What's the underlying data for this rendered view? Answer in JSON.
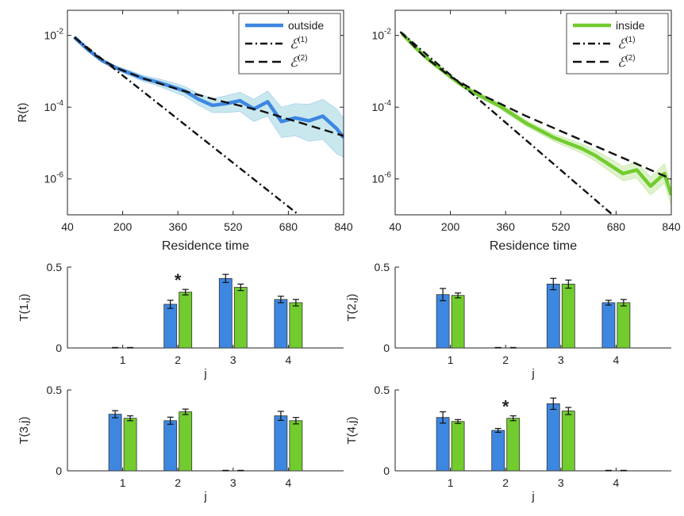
{
  "colors": {
    "outside": "#3d87e0",
    "outside_band": "#c9e8ee",
    "inside": "#72cc2e",
    "inside_band": "#dff2cd",
    "fit": "#111111"
  },
  "chart_data": [
    {
      "type": "line",
      "id": "top-left",
      "title": "",
      "xlabel": "Residence time",
      "ylabel": "R(t)",
      "yscale": "log",
      "xlim": [
        40,
        840
      ],
      "ylim_exp": [
        -7,
        -1.3
      ],
      "xticks": [
        40,
        200,
        360,
        520,
        680,
        840
      ],
      "xtick_labels": [
        "40",
        "200",
        "360",
        "520",
        "680",
        "840"
      ],
      "yticks_exp": [
        -2,
        -4,
        -6
      ],
      "ytick_labels": [
        {
          "base": "10",
          "exp": "-2"
        },
        {
          "base": "10",
          "exp": "-4"
        },
        {
          "base": "10",
          "exp": "-6"
        }
      ],
      "legend_position": "top-right",
      "series": [
        {
          "name": "outside",
          "style": "band-line",
          "x": [
            60,
            100,
            140,
            180,
            220,
            260,
            300,
            340,
            380,
            420,
            460,
            500,
            540,
            580,
            620,
            660,
            700,
            740,
            780,
            820,
            840
          ],
          "y_exp": [
            -2.05,
            -2.4,
            -2.7,
            -2.9,
            -3.05,
            -3.2,
            -3.3,
            -3.42,
            -3.55,
            -3.78,
            -3.95,
            -3.9,
            -3.82,
            -4.05,
            -3.85,
            -4.4,
            -4.3,
            -4.38,
            -4.25,
            -4.6,
            -4.85
          ],
          "band_low_exp": [
            -2.05,
            -2.42,
            -2.74,
            -2.95,
            -3.12,
            -3.28,
            -3.4,
            -3.55,
            -3.7,
            -3.95,
            -4.15,
            -4.15,
            -4.12,
            -4.4,
            -4.25,
            -4.85,
            -4.8,
            -4.95,
            -4.9,
            -5.3,
            -5.4
          ],
          "band_high_exp": [
            -2.05,
            -2.38,
            -2.66,
            -2.85,
            -2.98,
            -3.12,
            -3.2,
            -3.3,
            -3.42,
            -3.62,
            -3.76,
            -3.68,
            -3.58,
            -3.78,
            -3.55,
            -4.0,
            -3.9,
            -3.92,
            -3.78,
            -4.05,
            -4.3
          ]
        },
        {
          "name": "ℰ(1)",
          "label_base": "ℰ",
          "label_sup": "(1)",
          "style": "dashdot",
          "x": [
            60,
            710
          ],
          "y_exp": [
            -2.05,
            -7.0
          ]
        },
        {
          "name": "ℰ(2)",
          "label_base": "ℰ",
          "label_sup": "(2)",
          "style": "dashed",
          "x": [
            60,
            120,
            180,
            260,
            360,
            480,
            600,
            720,
            840
          ],
          "y_exp": [
            -2.05,
            -2.55,
            -2.9,
            -3.2,
            -3.5,
            -3.82,
            -4.1,
            -4.45,
            -4.8
          ]
        }
      ]
    },
    {
      "type": "line",
      "id": "top-right",
      "title": "",
      "xlabel": "Residence time",
      "ylabel": "",
      "yscale": "log",
      "xlim": [
        40,
        840
      ],
      "ylim_exp": [
        -7,
        -1.3
      ],
      "xticks": [
        40,
        200,
        360,
        520,
        680,
        840
      ],
      "xtick_labels": [
        "40",
        "200",
        "360",
        "520",
        "680",
        "840"
      ],
      "yticks_exp": [
        -2,
        -4,
        -6
      ],
      "ytick_labels": [
        {
          "base": "10",
          "exp": "-2"
        },
        {
          "base": "10",
          "exp": "-4"
        },
        {
          "base": "10",
          "exp": "-6"
        }
      ],
      "legend_position": "top-right",
      "series": [
        {
          "name": "inside",
          "style": "band-line",
          "x": [
            60,
            100,
            140,
            180,
            220,
            260,
            300,
            340,
            380,
            420,
            460,
            500,
            540,
            580,
            620,
            660,
            700,
            740,
            780,
            820,
            840
          ],
          "y_exp": [
            -1.95,
            -2.35,
            -2.7,
            -3.0,
            -3.3,
            -3.55,
            -3.75,
            -3.95,
            -4.2,
            -4.45,
            -4.65,
            -4.85,
            -5.0,
            -5.15,
            -5.35,
            -5.6,
            -5.85,
            -5.75,
            -6.2,
            -5.85,
            -6.45
          ],
          "band_low_exp": [
            -1.96,
            -2.37,
            -2.73,
            -3.04,
            -3.35,
            -3.6,
            -3.82,
            -4.02,
            -4.28,
            -4.53,
            -4.74,
            -4.95,
            -5.12,
            -5.28,
            -5.5,
            -5.78,
            -6.05,
            -5.98,
            -6.45,
            -6.12,
            -6.75
          ],
          "band_high_exp": [
            -1.94,
            -2.33,
            -2.67,
            -2.96,
            -3.25,
            -3.5,
            -3.68,
            -3.88,
            -4.12,
            -4.37,
            -4.56,
            -4.75,
            -4.88,
            -5.02,
            -5.2,
            -5.42,
            -5.65,
            -5.52,
            -5.95,
            -5.58,
            -6.15
          ]
        },
        {
          "name": "ℰ(1)",
          "label_base": "ℰ",
          "label_sup": "(1)",
          "style": "dashdot",
          "x": [
            55,
            670
          ],
          "y_exp": [
            -1.9,
            -7.0
          ]
        },
        {
          "name": "ℰ(2)",
          "label_base": "ℰ",
          "label_sup": "(2)",
          "style": "dashed",
          "x": [
            55,
            120,
            200,
            300,
            420,
            540,
            660,
            780,
            840
          ],
          "y_exp": [
            -1.9,
            -2.55,
            -3.15,
            -3.7,
            -4.25,
            -4.75,
            -5.25,
            -5.75,
            -6.0
          ]
        }
      ]
    },
    {
      "type": "bar",
      "id": "T1",
      "ylabel": "T(1,j)",
      "xlabel": "j",
      "categories": [
        "1",
        "2",
        "3",
        "4"
      ],
      "ylim": [
        0,
        0.5
      ],
      "yticks": [
        0,
        0.5
      ],
      "ytick_labels": [
        "0",
        "0.5"
      ],
      "series": [
        {
          "name": "outside",
          "values": [
            0.0,
            0.27,
            0.43,
            0.3
          ],
          "errors": [
            0.003,
            0.025,
            0.025,
            0.02
          ]
        },
        {
          "name": "inside",
          "values": [
            0.0,
            0.345,
            0.375,
            0.28
          ],
          "errors": [
            0.003,
            0.017,
            0.02,
            0.02
          ]
        }
      ],
      "annotations": [
        {
          "category": "2",
          "text": "*"
        }
      ]
    },
    {
      "type": "bar",
      "id": "T2",
      "ylabel": "T(2,j)",
      "xlabel": "j",
      "categories": [
        "1",
        "2",
        "3",
        "4"
      ],
      "ylim": [
        0,
        0.5
      ],
      "yticks": [
        0,
        0.5
      ],
      "ytick_labels": [
        "0",
        "0.5"
      ],
      "series": [
        {
          "name": "outside",
          "values": [
            0.33,
            0.0,
            0.395,
            0.28
          ],
          "errors": [
            0.038,
            0.003,
            0.035,
            0.015
          ]
        },
        {
          "name": "inside",
          "values": [
            0.325,
            0.0,
            0.395,
            0.28
          ],
          "errors": [
            0.015,
            0.003,
            0.025,
            0.02
          ]
        }
      ],
      "annotations": []
    },
    {
      "type": "bar",
      "id": "T3",
      "ylabel": "T(3,j)",
      "xlabel": "j",
      "categories": [
        "1",
        "2",
        "3",
        "4"
      ],
      "ylim": [
        0,
        0.5
      ],
      "yticks": [
        0,
        0.5
      ],
      "ytick_labels": [
        "0",
        "0.5"
      ],
      "series": [
        {
          "name": "outside",
          "values": [
            0.35,
            0.31,
            0.0,
            0.34
          ],
          "errors": [
            0.022,
            0.022,
            0.003,
            0.028
          ]
        },
        {
          "name": "inside",
          "values": [
            0.325,
            0.365,
            0.0,
            0.31
          ],
          "errors": [
            0.015,
            0.017,
            0.003,
            0.02
          ]
        }
      ],
      "annotations": []
    },
    {
      "type": "bar",
      "id": "T4",
      "ylabel": "T(4,j)",
      "xlabel": "j",
      "categories": [
        "1",
        "2",
        "3",
        "4"
      ],
      "ylim": [
        0,
        0.5
      ],
      "yticks": [
        0,
        0.5
      ],
      "ytick_labels": [
        "0",
        "0.5"
      ],
      "series": [
        {
          "name": "outside",
          "values": [
            0.33,
            0.25,
            0.415,
            0.0
          ],
          "errors": [
            0.035,
            0.012,
            0.035,
            0.003
          ]
        },
        {
          "name": "inside",
          "values": [
            0.305,
            0.325,
            0.37,
            0.0
          ],
          "errors": [
            0.012,
            0.015,
            0.022,
            0.003
          ]
        }
      ],
      "annotations": [
        {
          "category": "2",
          "text": "*"
        }
      ]
    }
  ]
}
